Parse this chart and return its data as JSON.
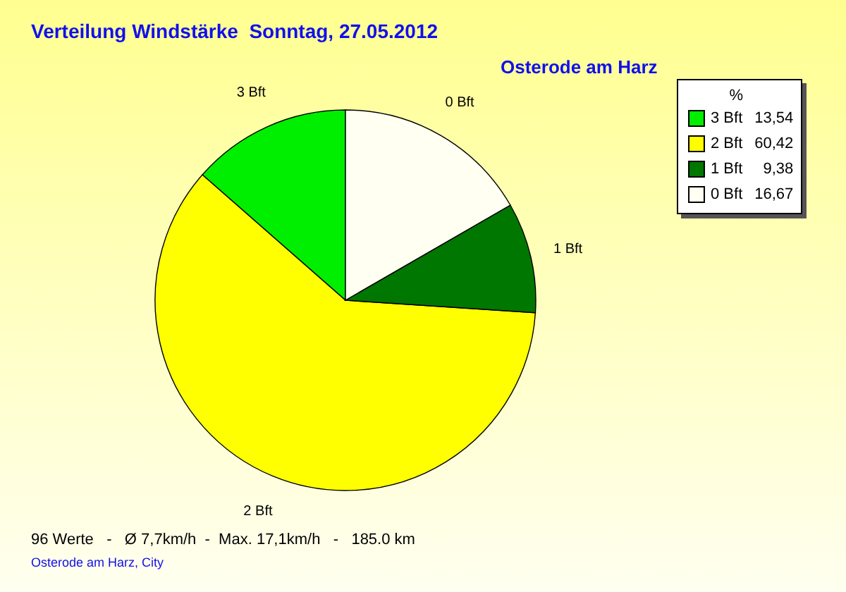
{
  "chart_data": {
    "type": "pie",
    "title": "Verteilung Windstärke  Sonntag, 27.05.2012",
    "subtitle": "Osterode am Harz",
    "legend_title": "%",
    "legend": "top right",
    "categories": [
      "3 Bft",
      "2 Bft",
      "1 Bft",
      "0 Bft"
    ],
    "values": [
      13.54,
      60.42,
      9.38,
      16.67
    ],
    "value_labels": [
      "13,54",
      "60,42",
      "9,38",
      "16,67"
    ],
    "colors": [
      "#00ee00",
      "#ffff00",
      "#007700",
      "#fffff2"
    ],
    "annotations": [
      "96 Werte   -   Ø 7,7km/h  -  Max. 17,1km/h   -   185.0 km",
      "Osterode am Harz, City"
    ]
  }
}
